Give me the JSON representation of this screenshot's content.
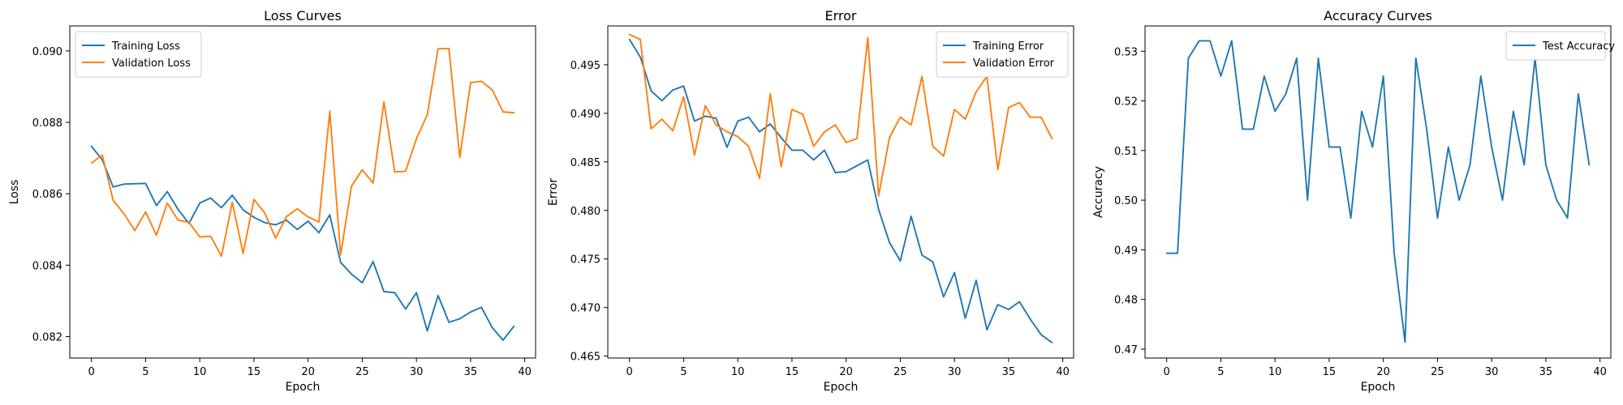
{
  "chart_data": [
    {
      "type": "line",
      "title": "Loss Curves",
      "xlabel": "Epoch",
      "ylabel": "Loss",
      "xlim": [
        -2,
        41
      ],
      "ylim": [
        0.0814,
        0.0907
      ],
      "xticks": [
        0,
        5,
        10,
        15,
        20,
        25,
        30,
        35,
        40
      ],
      "xtick_labels": [
        "0",
        "5",
        "10",
        "15",
        "20",
        "25",
        "30",
        "35",
        "40"
      ],
      "yticks": [
        0.082,
        0.084,
        0.086,
        0.088,
        0.09
      ],
      "ytick_labels": [
        "0.082",
        "0.084",
        "0.086",
        "0.088",
        "0.090"
      ],
      "grid": false,
      "legend": "top-left",
      "x": [
        0,
        1,
        2,
        3,
        4,
        5,
        6,
        7,
        8,
        9,
        10,
        11,
        12,
        13,
        14,
        15,
        16,
        17,
        18,
        19,
        20,
        21,
        22,
        23,
        24,
        25,
        26,
        27,
        28,
        29,
        30,
        31,
        32,
        33,
        34,
        35,
        36,
        37,
        38,
        39
      ],
      "series": [
        {
          "name": "Training Loss",
          "color": "#1f77b4",
          "values": [
            0.08733,
            0.08695,
            0.08619,
            0.08627,
            0.08628,
            0.08629,
            0.08567,
            0.08606,
            0.08556,
            0.08517,
            0.08574,
            0.08588,
            0.08561,
            0.08596,
            0.08555,
            0.08534,
            0.08519,
            0.08513,
            0.08526,
            0.085,
            0.08523,
            0.08491,
            0.08541,
            0.08408,
            0.08375,
            0.08351,
            0.0841,
            0.08326,
            0.08323,
            0.08277,
            0.08323,
            0.08216,
            0.08315,
            0.0824,
            0.0825,
            0.08269,
            0.08282,
            0.08225,
            0.0819,
            0.08229
          ]
        },
        {
          "name": "Validation Loss",
          "color": "#ff7f0e",
          "values": [
            0.08686,
            0.08708,
            0.08582,
            0.08544,
            0.08497,
            0.08549,
            0.08484,
            0.08574,
            0.08526,
            0.0852,
            0.08479,
            0.08481,
            0.08425,
            0.08576,
            0.08433,
            0.08584,
            0.08546,
            0.08476,
            0.08536,
            0.08558,
            0.08535,
            0.08521,
            0.08831,
            0.08429,
            0.08621,
            0.08667,
            0.0863,
            0.08857,
            0.08661,
            0.08663,
            0.08754,
            0.08821,
            0.09006,
            0.09007,
            0.08702,
            0.08911,
            0.08915,
            0.08891,
            0.08829,
            0.08827
          ]
        }
      ]
    },
    {
      "type": "line",
      "title": "Error",
      "xlabel": "Epoch",
      "ylabel": "Error",
      "xlim": [
        -2,
        41
      ],
      "ylim": [
        0.4648,
        0.499
      ],
      "xticks": [
        0,
        5,
        10,
        15,
        20,
        25,
        30,
        35,
        40
      ],
      "xtick_labels": [
        "0",
        "5",
        "10",
        "15",
        "20",
        "25",
        "30",
        "35",
        "40"
      ],
      "yticks": [
        0.465,
        0.47,
        0.475,
        0.48,
        0.485,
        0.49,
        0.495
      ],
      "ytick_labels": [
        "0.465",
        "0.470",
        "0.475",
        "0.480",
        "0.485",
        "0.490",
        "0.495"
      ],
      "grid": false,
      "legend": "top-right",
      "x": [
        0,
        1,
        2,
        3,
        4,
        5,
        6,
        7,
        8,
        9,
        10,
        11,
        12,
        13,
        14,
        15,
        16,
        17,
        18,
        19,
        20,
        21,
        22,
        23,
        24,
        25,
        26,
        27,
        28,
        29,
        30,
        31,
        32,
        33,
        34,
        35,
        36,
        37,
        38,
        39
      ],
      "series": [
        {
          "name": "Training Error",
          "color": "#1f77b4",
          "values": [
            0.4976,
            0.4958,
            0.4923,
            0.4913,
            0.4924,
            0.4928,
            0.4892,
            0.4897,
            0.4895,
            0.4865,
            0.4892,
            0.4896,
            0.4881,
            0.4889,
            0.4875,
            0.4862,
            0.4862,
            0.4852,
            0.4862,
            0.4839,
            0.484,
            0.4846,
            0.4852,
            0.4801,
            0.4767,
            0.4748,
            0.4794,
            0.4754,
            0.4747,
            0.4711,
            0.4736,
            0.4689,
            0.4728,
            0.4677,
            0.4703,
            0.4698,
            0.4706,
            0.4688,
            0.4672,
            0.4664
          ]
        },
        {
          "name": "Validation Error",
          "color": "#ff7f0e",
          "values": [
            0.4981,
            0.4976,
            0.4884,
            0.4894,
            0.4882,
            0.4917,
            0.4857,
            0.4908,
            0.4888,
            0.4881,
            0.4876,
            0.4866,
            0.4833,
            0.492,
            0.4845,
            0.4904,
            0.4899,
            0.4866,
            0.4881,
            0.4888,
            0.487,
            0.4874,
            0.4978,
            0.4815,
            0.4875,
            0.4896,
            0.4888,
            0.4938,
            0.4866,
            0.4856,
            0.4904,
            0.4894,
            0.4922,
            0.4938,
            0.4842,
            0.4906,
            0.4911,
            0.4896,
            0.4896,
            0.4874
          ]
        }
      ]
    },
    {
      "type": "line",
      "title": "Accuracy Curves",
      "xlabel": "Epoch",
      "ylabel": "Accuracy",
      "xlim": [
        -2,
        41
      ],
      "ylim": [
        0.4682,
        0.5351
      ],
      "xticks": [
        0,
        5,
        10,
        15,
        20,
        25,
        30,
        35,
        40
      ],
      "xtick_labels": [
        "0",
        "5",
        "10",
        "15",
        "20",
        "25",
        "30",
        "35",
        "40"
      ],
      "yticks": [
        0.47,
        0.48,
        0.49,
        0.5,
        0.51,
        0.52,
        0.53
      ],
      "ytick_labels": [
        "0.47",
        "0.48",
        "0.49",
        "0.50",
        "0.51",
        "0.52",
        "0.53"
      ],
      "grid": false,
      "legend": "top-right",
      "x": [
        0,
        1,
        2,
        3,
        4,
        5,
        6,
        7,
        8,
        9,
        10,
        11,
        12,
        13,
        14,
        15,
        16,
        17,
        18,
        19,
        20,
        21,
        22,
        23,
        24,
        25,
        26,
        27,
        28,
        29,
        30,
        31,
        32,
        33,
        34,
        35,
        36,
        37,
        38,
        39
      ],
      "series": [
        {
          "name": "Test Accuracy",
          "color": "#1f77b4",
          "values": [
            0.4893,
            0.4893,
            0.5286,
            0.5321,
            0.5321,
            0.525,
            0.5321,
            0.5143,
            0.5143,
            0.525,
            0.5179,
            0.5214,
            0.5286,
            0.5,
            0.5286,
            0.5107,
            0.5107,
            0.4964,
            0.5179,
            0.5107,
            0.525,
            0.4893,
            0.4714,
            0.5286,
            0.5143,
            0.4964,
            0.5107,
            0.5,
            0.5071,
            0.525,
            0.5107,
            0.5,
            0.5179,
            0.5071,
            0.5286,
            0.5071,
            0.5,
            0.4964,
            0.5214,
            0.5071
          ]
        }
      ]
    }
  ]
}
